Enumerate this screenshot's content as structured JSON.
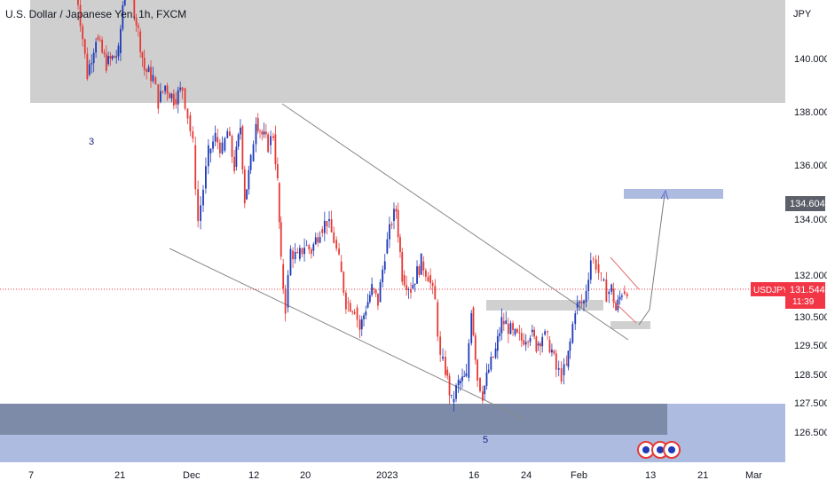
{
  "chart_data": {
    "type": "candlestick",
    "title": "U.S. Dollar / Japanese Yen, 1h, FXCM",
    "symbol": "USDJPY",
    "currency_label": "JPY",
    "last_price": "131.544",
    "countdown": "11:39",
    "target_price_label": "134.604",
    "y_ticks": [
      "140.000",
      "138.000",
      "136.000",
      "134.000",
      "132.000",
      "130.500",
      "129.500",
      "128.500",
      "127.500",
      "126.500"
    ],
    "x_ticks": [
      "7",
      "21",
      "Dec",
      "12",
      "20",
      "2023",
      "16",
      "24",
      "Feb",
      "13",
      "21",
      "Mar"
    ],
    "wave_labels": [
      "3",
      "5"
    ],
    "colors": {
      "up": "#1e3ab8",
      "down": "#e53935",
      "last_price": "#f23645",
      "zone": "#cfcfcf",
      "demand_zone": "#7d8aa8",
      "target_zone": "#aebbe0"
    },
    "series_path": [
      [
        5.0,
        143.5
      ],
      [
        6.6,
        139.4
      ],
      [
        7.6,
        140.8
      ],
      [
        8.8,
        139.8
      ],
      [
        10.2,
        140.2
      ],
      [
        11.2,
        143.8
      ],
      [
        11.8,
        142.2
      ],
      [
        12.5,
        141.0
      ],
      [
        13.2,
        139.6
      ],
      [
        14.2,
        139.3
      ],
      [
        14.8,
        138.4
      ],
      [
        15.6,
        139.0
      ],
      [
        16.6,
        138.5
      ],
      [
        17.6,
        138.9
      ],
      [
        18.2,
        137.9
      ],
      [
        18.8,
        136.8
      ],
      [
        19.4,
        134.0
      ],
      [
        20.0,
        135.2
      ],
      [
        20.6,
        136.5
      ],
      [
        21.4,
        137.1
      ],
      [
        22.2,
        136.6
      ],
      [
        22.8,
        137.3
      ],
      [
        23.6,
        136.0
      ],
      [
        24.3,
        137.5
      ],
      [
        24.8,
        134.8
      ],
      [
        25.5,
        136.2
      ],
      [
        26.1,
        137.8
      ],
      [
        26.8,
        137.2
      ],
      [
        27.5,
        136.8
      ],
      [
        28.1,
        137.2
      ],
      [
        28.6,
        135.4
      ],
      [
        29.0,
        132.4
      ],
      [
        29.5,
        130.8
      ],
      [
        30.1,
        132.9
      ],
      [
        30.9,
        132.6
      ],
      [
        31.7,
        133.1
      ],
      [
        32.5,
        132.9
      ],
      [
        33.5,
        133.7
      ],
      [
        34.3,
        134.0
      ],
      [
        35.1,
        133.3
      ],
      [
        35.7,
        132.5
      ],
      [
        36.5,
        131.0
      ],
      [
        37.5,
        130.8
      ],
      [
        38.1,
        130.0
      ],
      [
        38.8,
        130.8
      ],
      [
        39.5,
        131.5
      ],
      [
        40.2,
        131.0
      ],
      [
        41.0,
        132.8
      ],
      [
        41.8,
        134.0
      ],
      [
        42.3,
        134.4
      ],
      [
        43.0,
        132.0
      ],
      [
        44.0,
        131.5
      ],
      [
        45.2,
        132.5
      ],
      [
        46.0,
        132.0
      ],
      [
        46.8,
        131.0
      ],
      [
        47.4,
        128.9
      ],
      [
        48.0,
        128.5
      ],
      [
        48.7,
        127.3
      ],
      [
        49.5,
        128.0
      ],
      [
        50.4,
        128.2
      ],
      [
        51.0,
        130.8
      ],
      [
        51.7,
        128.2
      ],
      [
        52.3,
        127.6
      ],
      [
        53.0,
        128.5
      ],
      [
        53.8,
        129.2
      ],
      [
        54.5,
        130.3
      ],
      [
        55.0,
        130.2
      ],
      [
        55.8,
        129.8
      ],
      [
        56.8,
        129.6
      ],
      [
        57.8,
        129.9
      ],
      [
        58.5,
        129.4
      ],
      [
        59.2,
        129.8
      ],
      [
        59.8,
        129.6
      ],
      [
        60.3,
        129.2
      ],
      [
        60.8,
        128.5
      ],
      [
        61.4,
        128.3
      ],
      [
        62.0,
        128.6
      ],
      [
        62.4,
        129.5
      ],
      [
        63.0,
        130.8
      ],
      [
        64.0,
        131.0
      ],
      [
        64.8,
        132.6
      ],
      [
        65.4,
        132.4
      ],
      [
        66.0,
        131.8
      ],
      [
        66.6,
        131.3
      ],
      [
        67.2,
        131.5
      ],
      [
        67.7,
        130.7
      ],
      [
        68.4,
        131.4
      ],
      [
        69.0,
        131.5
      ]
    ]
  }
}
